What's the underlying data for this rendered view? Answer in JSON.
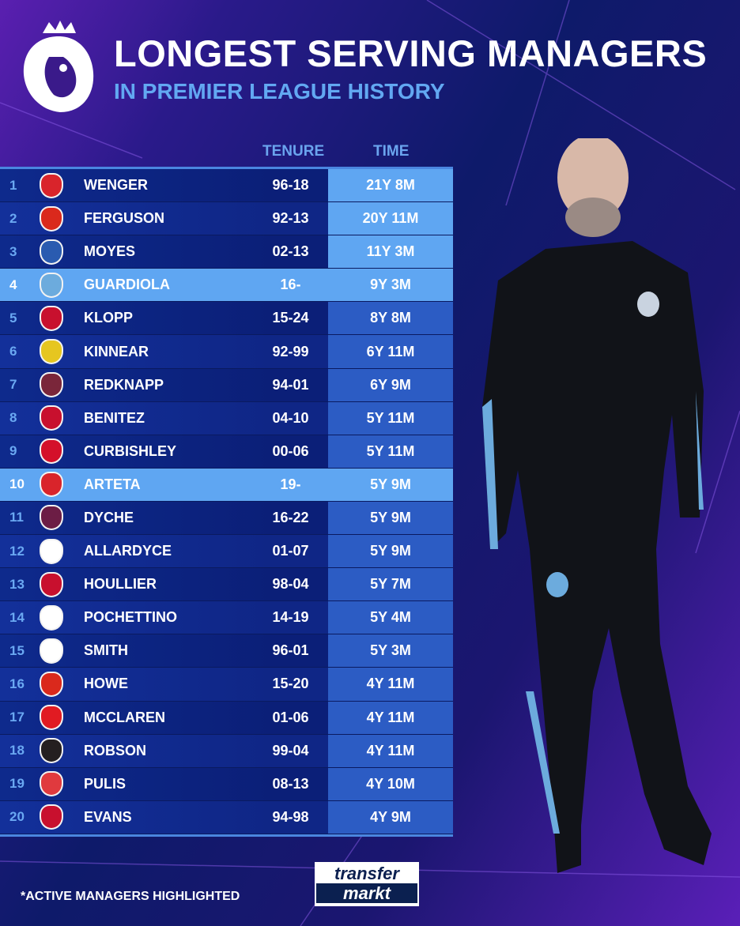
{
  "header": {
    "title": "LONGEST SERVING MANAGERS",
    "subtitle": "IN PREMIER LEAGUE HISTORY"
  },
  "columns": {
    "tenure": "TENURE",
    "time": "TIME"
  },
  "colors": {
    "highlight": "#5fa6f2",
    "row_dark": "#0e2a8c",
    "accent_text": "#62a8f2"
  },
  "rows": [
    {
      "rank": "1",
      "club_icon": "arsenal-crest",
      "name": "WENGER",
      "tenure": "96-18",
      "time": "21Y 8M",
      "active": false,
      "crest": "#d9242b"
    },
    {
      "rank": "2",
      "club_icon": "man-utd-crest",
      "name": "FERGUSON",
      "tenure": "92-13",
      "time": "20Y 11M",
      "active": false,
      "crest": "#da291c"
    },
    {
      "rank": "3",
      "club_icon": "everton-crest",
      "name": "MOYES",
      "tenure": "02-13",
      "time": "11Y 3M",
      "active": false,
      "crest": "#2a5bb0"
    },
    {
      "rank": "4",
      "club_icon": "man-city-crest",
      "name": "GUARDIOLA",
      "tenure": "16-",
      "time": "9Y 3M",
      "active": true,
      "crest": "#6cabdd"
    },
    {
      "rank": "5",
      "club_icon": "liverpool-crest",
      "name": "KLOPP",
      "tenure": "15-24",
      "time": "8Y 8M",
      "active": false,
      "crest": "#c8102e"
    },
    {
      "rank": "6",
      "club_icon": "wimbledon-crest",
      "name": "KINNEAR",
      "tenure": "92-99",
      "time": "6Y 11M",
      "active": false,
      "crest": "#e6c620"
    },
    {
      "rank": "7",
      "club_icon": "west-ham-crest",
      "name": "REDKNAPP",
      "tenure": "94-01",
      "time": "6Y 9M",
      "active": false,
      "crest": "#7a263a"
    },
    {
      "rank": "8",
      "club_icon": "liverpool-crest",
      "name": "BENITEZ",
      "tenure": "04-10",
      "time": "5Y 11M",
      "active": false,
      "crest": "#c8102e"
    },
    {
      "rank": "9",
      "club_icon": "charlton-crest",
      "name": "CURBISHLEY",
      "tenure": "00-06",
      "time": "5Y 11M",
      "active": false,
      "crest": "#d4102a"
    },
    {
      "rank": "10",
      "club_icon": "arsenal-crest",
      "name": "ARTETA",
      "tenure": "19-",
      "time": "5Y 9M",
      "active": true,
      "crest": "#d9242b"
    },
    {
      "rank": "11",
      "club_icon": "burnley-crest",
      "name": "DYCHE",
      "tenure": "16-22",
      "time": "5Y 9M",
      "active": false,
      "crest": "#6c1d45"
    },
    {
      "rank": "12",
      "club_icon": "bolton-crest",
      "name": "ALLARDYCE",
      "tenure": "01-07",
      "time": "5Y 9M",
      "active": false,
      "crest": "#ffffff"
    },
    {
      "rank": "13",
      "club_icon": "liverpool-crest",
      "name": "HOULLIER",
      "tenure": "98-04",
      "time": "5Y 7M",
      "active": false,
      "crest": "#c8102e"
    },
    {
      "rank": "14",
      "club_icon": "tottenham-crest",
      "name": "POCHETTINO",
      "tenure": "14-19",
      "time": "5Y 4M",
      "active": false,
      "crest": "#ffffff"
    },
    {
      "rank": "15",
      "club_icon": "derby-crest",
      "name": "SMITH",
      "tenure": "96-01",
      "time": "5Y 3M",
      "active": false,
      "crest": "#ffffff"
    },
    {
      "rank": "16",
      "club_icon": "bournemouth-crest",
      "name": "HOWE",
      "tenure": "15-20",
      "time": "4Y 11M",
      "active": false,
      "crest": "#da291c"
    },
    {
      "rank": "17",
      "club_icon": "middlesbrough-crest",
      "name": "MCCLAREN",
      "tenure": "01-06",
      "time": "4Y 11M",
      "active": false,
      "crest": "#e11b22"
    },
    {
      "rank": "18",
      "club_icon": "newcastle-crest",
      "name": "ROBSON",
      "tenure": "99-04",
      "time": "4Y 11M",
      "active": false,
      "crest": "#241f20"
    },
    {
      "rank": "19",
      "club_icon": "stoke-crest",
      "name": "PULIS",
      "tenure": "08-13",
      "time": "4Y 10M",
      "active": false,
      "crest": "#e03a3e"
    },
    {
      "rank": "20",
      "club_icon": "liverpool-crest",
      "name": "EVANS",
      "tenure": "94-98",
      "time": "4Y 9M",
      "active": false,
      "crest": "#c8102e"
    }
  ],
  "footer": {
    "note": "*ACTIVE MANAGERS HIGHLIGHTED",
    "brand_line1": "transfer",
    "brand_line2": "markt"
  }
}
